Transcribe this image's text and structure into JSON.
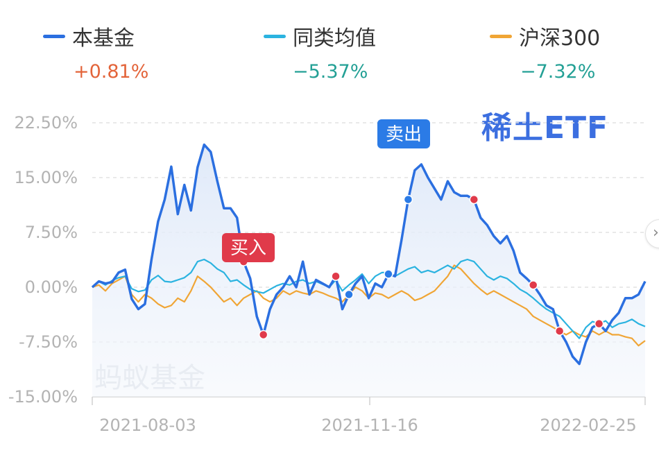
{
  "legend": [
    {
      "name": "本基金",
      "value": "+0.81%",
      "color": "#2b6fe0",
      "value_color": "#e3643a"
    },
    {
      "name": "同类均值",
      "value": "−5.37%",
      "color": "#2bb3e0",
      "value_color": "#23a095"
    },
    {
      "name": "沪深300",
      "value": "−7.32%",
      "color": "#f0a535",
      "value_color": "#23a095"
    }
  ],
  "fund_name": "稀土ETF",
  "watermark": "蚂蚁基金",
  "chart_data": {
    "type": "line",
    "x_tick_labels": [
      "2021-08-03",
      "2021-11-16",
      "2022-02-25"
    ],
    "y_tick_labels": [
      "22.50%",
      "15.00%",
      "7.50%",
      "0.00%",
      "-7.50%",
      "-15.00%"
    ],
    "ylim": [
      -15,
      22.5
    ],
    "y_unit": "%",
    "grid": "horizontal dashed",
    "legend_position": "top",
    "series": [
      {
        "name": "本基金",
        "color": "#2b6fe0",
        "fill": true,
        "values": [
          0.0,
          0.8,
          0.5,
          0.7,
          2.0,
          2.4,
          -1.6,
          -3.0,
          -2.3,
          3.8,
          9.0,
          12.0,
          16.5,
          10.0,
          14.0,
          10.5,
          16.4,
          19.5,
          18.5,
          14.5,
          10.8,
          10.8,
          9.5,
          3.5,
          1.2,
          -4.0,
          -6.5,
          -3.0,
          -1.0,
          0.0,
          1.5,
          0.0,
          3.5,
          -1.0,
          1.0,
          0.5,
          0.0,
          1.5,
          -3.0,
          -1.0,
          0.5,
          1.5,
          -1.5,
          0.5,
          0.0,
          1.8,
          1.5,
          6.5,
          12.0,
          16.0,
          16.8,
          15.0,
          13.5,
          12.0,
          14.5,
          13.0,
          12.5,
          12.5,
          12.0,
          9.5,
          8.5,
          7.0,
          6.0,
          7.0,
          5.0,
          2.0,
          1.2,
          0.3,
          -1.0,
          -2.5,
          -3.0,
          -6.0,
          -7.5,
          -9.5,
          -10.5,
          -7.5,
          -5.5,
          -5.0,
          -6.0,
          -4.5,
          -3.5,
          -1.5,
          -1.5,
          -1.0,
          0.8
        ]
      },
      {
        "name": "同类均值",
        "color": "#2bb3e0",
        "fill": false,
        "values": [
          0.0,
          0.8,
          0.3,
          0.9,
          1.3,
          1.5,
          -0.2,
          -0.6,
          -0.4,
          1.0,
          1.6,
          0.8,
          0.7,
          1.0,
          1.3,
          2.0,
          3.5,
          3.8,
          3.3,
          2.5,
          2.0,
          0.8,
          1.0,
          0.3,
          -0.3,
          -0.6,
          -0.8,
          -0.3,
          0.2,
          0.5,
          0.3,
          0.8,
          1.0,
          0.5,
          0.8,
          0.4,
          0.0,
          1.0,
          -0.5,
          0.3,
          1.0,
          1.8,
          0.5,
          1.5,
          2.0,
          2.0,
          1.5,
          2.0,
          2.5,
          2.8,
          2.0,
          2.3,
          2.0,
          2.5,
          3.0,
          2.5,
          3.5,
          3.8,
          3.5,
          2.5,
          1.5,
          1.0,
          1.5,
          1.2,
          0.5,
          -0.3,
          -0.8,
          -1.5,
          -2.3,
          -3.0,
          -3.5,
          -4.0,
          -5.0,
          -6.0,
          -7.0,
          -5.5,
          -4.7,
          -5.0,
          -4.6,
          -5.5,
          -5.0,
          -4.8,
          -4.4,
          -5.0,
          -5.37
        ]
      },
      {
        "name": "沪深300",
        "color": "#f0a535",
        "fill": false,
        "values": [
          0.0,
          0.3,
          -0.5,
          0.5,
          1.0,
          1.5,
          -1.0,
          -2.0,
          -1.0,
          -1.5,
          -2.3,
          -2.8,
          -2.5,
          -1.5,
          -2.0,
          -0.5,
          1.5,
          0.8,
          0.0,
          -1.0,
          -2.0,
          -1.5,
          -2.5,
          -1.5,
          -1.0,
          -0.5,
          -1.5,
          -2.0,
          -1.5,
          -0.5,
          -1.0,
          -0.5,
          -0.8,
          -1.0,
          -0.5,
          -0.8,
          -1.2,
          -1.5,
          -2.0,
          -1.0,
          0.0,
          -0.5,
          -1.5,
          -0.8,
          -1.0,
          -1.5,
          -1.0,
          -0.5,
          -1.0,
          -1.8,
          -1.5,
          -1.0,
          -0.5,
          0.5,
          1.5,
          3.0,
          2.5,
          1.5,
          0.5,
          -0.3,
          -1.0,
          -0.5,
          -1.0,
          -1.5,
          -2.0,
          -2.5,
          -3.0,
          -4.0,
          -4.5,
          -5.0,
          -5.5,
          -6.0,
          -6.5,
          -6.0,
          -6.5,
          -6.8,
          -6.0,
          -6.5,
          -6.0,
          -6.5,
          -6.5,
          -6.8,
          -7.0,
          -8.0,
          -7.32
        ]
      }
    ],
    "annotations": [
      {
        "label": "买入",
        "color": "#e03a4a",
        "type": "buy"
      },
      {
        "label": "卖出",
        "color": "#2b7be6",
        "type": "sell"
      }
    ]
  }
}
